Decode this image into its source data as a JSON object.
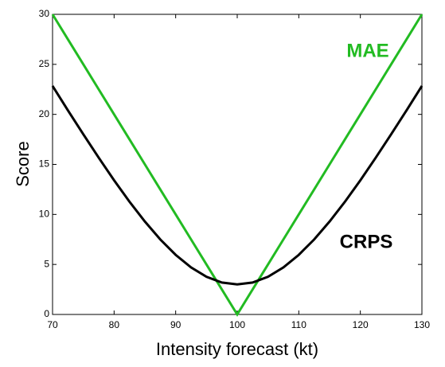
{
  "chart_data": {
    "type": "line",
    "x_label": "Intensity forecast (kt)",
    "y_label": "Score",
    "x": [
      70,
      72.5,
      75,
      77.5,
      80,
      82.5,
      85,
      87.5,
      90,
      92.5,
      95,
      97.5,
      100,
      102.5,
      105,
      107.5,
      110,
      112.5,
      115,
      117.5,
      120,
      122.5,
      125,
      127.5,
      130
    ],
    "series": [
      {
        "name": "MAE",
        "color": "#22bb22",
        "values": [
          30,
          27.5,
          25,
          22.5,
          20,
          17.5,
          15,
          12.5,
          10,
          7.5,
          5,
          2.5,
          0,
          2.5,
          5,
          7.5,
          10,
          12.5,
          15,
          17.5,
          20,
          22.5,
          25,
          27.5,
          30
        ]
      },
      {
        "name": "CRPS",
        "color": "#000000",
        "values": [
          22.84,
          20.4,
          18.01,
          15.67,
          13.41,
          11.27,
          9.29,
          7.5,
          5.96,
          4.7,
          3.77,
          3.19,
          3.0,
          3.19,
          3.77,
          4.7,
          5.96,
          7.5,
          9.29,
          11.27,
          13.41,
          15.67,
          18.01,
          20.4,
          22.84
        ]
      }
    ],
    "xlim": [
      70,
      130
    ],
    "xticks": [
      70,
      80,
      90,
      100,
      110,
      120,
      130
    ],
    "ylim": [
      0,
      30
    ],
    "yticks": [
      0,
      5,
      10,
      15,
      20,
      25,
      30
    ]
  }
}
